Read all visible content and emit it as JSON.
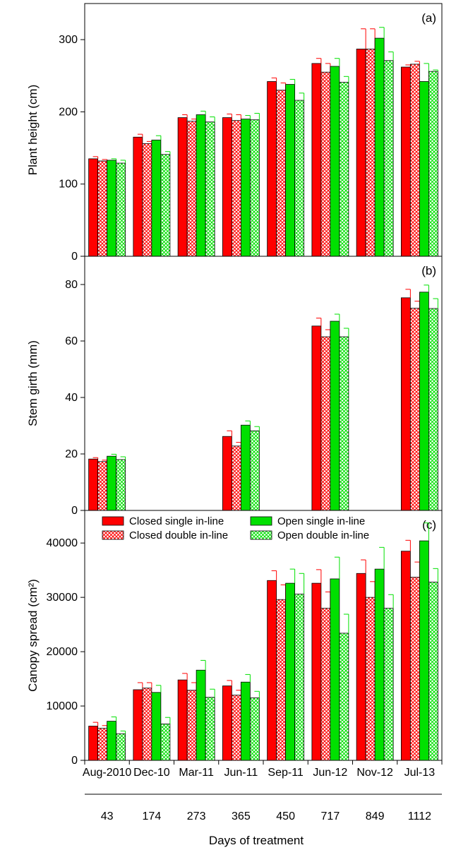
{
  "chart_data": {
    "type": "bar",
    "categories": [
      "Aug-2010",
      "Dec-10",
      "Mar-11",
      "Jun-11",
      "Sep-11",
      "Jun-12",
      "Nov-12",
      "Jul-13"
    ],
    "secondary_x": {
      "label": "Days of treatment",
      "ticks": [
        "43",
        "174",
        "273",
        "365",
        "450",
        "717",
        "849",
        "1112"
      ]
    },
    "series_style": [
      {
        "name": "Closed single in-line",
        "color": "#ff0000",
        "pattern": "solid"
      },
      {
        "name": "Closed double in-line",
        "color": "#ff0000",
        "pattern": "crosshatch"
      },
      {
        "name": "Open single in-line",
        "color": "#00e000",
        "pattern": "solid"
      },
      {
        "name": "Open double in-line",
        "color": "#00e000",
        "pattern": "crosshatch"
      }
    ],
    "panels": [
      {
        "label": "(a)",
        "ylabel": "Plant height (cm)",
        "ylim": [
          0,
          350
        ],
        "yticks": [
          0,
          100,
          200,
          300
        ],
        "series": [
          {
            "name": "Closed single in-line",
            "values": [
              135,
              165,
              192,
              192,
              242,
              267,
              287,
              262
            ],
            "errors": [
              3,
              4,
              4,
              5,
              5,
              7,
              28,
              3
            ]
          },
          {
            "name": "Closed double in-line",
            "values": [
              132,
              156,
              187,
              188,
              230,
              255,
              287,
              266
            ],
            "errors": [
              2,
              3,
              3,
              8,
              10,
              12,
              28,
              4
            ]
          },
          {
            "name": "Open single in-line",
            "values": [
              133,
              161,
              196,
              190,
              238,
              263,
              302,
              242
            ],
            "errors": [
              2,
              6,
              5,
              5,
              7,
              11,
              15,
              25
            ]
          },
          {
            "name": "Open double in-line",
            "values": [
              129,
              141,
              186,
              189,
              216,
              241,
              271,
              256
            ],
            "errors": [
              4,
              4,
              7,
              9,
              10,
              8,
              12,
              2
            ]
          }
        ]
      },
      {
        "label": "(b)",
        "ylabel": "Stem girth (mm)",
        "ylim": [
          0,
          90
        ],
        "yticks": [
          0,
          20,
          40,
          60,
          80
        ],
        "series": [
          {
            "name": "Closed single in-line",
            "values": [
              18.2,
              null,
              null,
              26.2,
              null,
              65.3,
              null,
              75.3
            ],
            "errors": [
              0.5,
              null,
              null,
              2.0,
              null,
              2.8,
              null,
              3.0
            ]
          },
          {
            "name": "Closed double in-line",
            "values": [
              17.3,
              null,
              null,
              22.8,
              null,
              61.5,
              null,
              71.6
            ],
            "errors": [
              0.5,
              null,
              null,
              1.3,
              null,
              2.5,
              null,
              2.5
            ]
          },
          {
            "name": "Open single in-line",
            "values": [
              19.2,
              null,
              null,
              30.2,
              null,
              67.0,
              null,
              77.3
            ],
            "errors": [
              0.7,
              null,
              null,
              1.5,
              null,
              2.5,
              null,
              2.5
            ]
          },
          {
            "name": "Open double in-line",
            "values": [
              18.0,
              null,
              null,
              28.2,
              null,
              61.5,
              null,
              71.5
            ],
            "errors": [
              1.0,
              null,
              null,
              1.5,
              null,
              3.0,
              null,
              3.5
            ]
          }
        ]
      },
      {
        "label": "(c)",
        "ylabel": "Canopy spread (cm²)",
        "ylim": [
          0,
          46000
        ],
        "yticks": [
          0,
          10000,
          20000,
          30000,
          40000
        ],
        "legend_position": "top",
        "series": [
          {
            "name": "Closed single in-line",
            "values": [
              6300,
              13000,
              14800,
              13700,
              33100,
              32600,
              34400,
              38500
            ],
            "errors": [
              700,
              1300,
              1200,
              1000,
              1800,
              2500,
              2500,
              2000
            ]
          },
          {
            "name": "Closed double in-line",
            "values": [
              5900,
              13300,
              12900,
              12000,
              29600,
              28000,
              30000,
              33700
            ],
            "errors": [
              500,
              1000,
              1400,
              900,
              2700,
              3000,
              2900,
              2800
            ]
          },
          {
            "name": "Open single in-line",
            "values": [
              7200,
              12500,
              16600,
              14400,
              32600,
              33400,
              35200,
              40400
            ],
            "errors": [
              800,
              1300,
              1800,
              1400,
              2600,
              4000,
              4000,
              3300
            ]
          },
          {
            "name": "Open double in-line",
            "values": [
              4900,
              6700,
              11600,
              11500,
              30600,
              23400,
              28000,
              32800
            ],
            "errors": [
              500,
              1200,
              1500,
              1200,
              3800,
              3500,
              2500,
              2500
            ]
          }
        ]
      }
    ]
  }
}
